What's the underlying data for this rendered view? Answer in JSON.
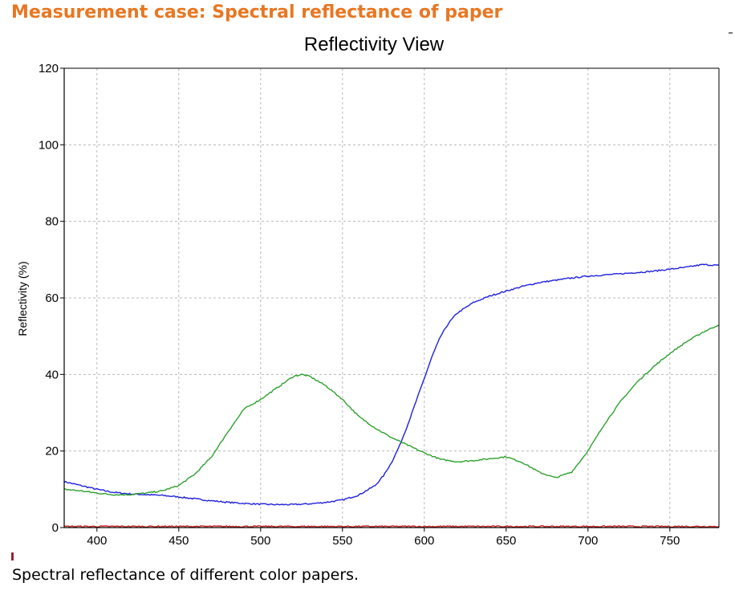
{
  "page": {
    "title": "Measurement case: Spectral reflectance of paper",
    "caption": "Spectral reflectance of different color papers."
  },
  "chart_data": {
    "type": "line",
    "title": "Reflectivity View",
    "xlabel": "",
    "ylabel": "Reflectivity (%)",
    "xlim": [
      380,
      780
    ],
    "ylim": [
      0,
      120
    ],
    "x_ticks": [
      400,
      450,
      500,
      550,
      600,
      650,
      700,
      750
    ],
    "y_ticks": [
      0,
      20,
      40,
      60,
      80,
      100,
      120
    ],
    "grid": true,
    "legend": "none",
    "series": [
      {
        "color": "#2020E0",
        "x": [
          380,
          390,
          400,
          410,
          420,
          430,
          440,
          450,
          460,
          470,
          480,
          490,
          500,
          510,
          520,
          530,
          540,
          550,
          560,
          570,
          575,
          580,
          585,
          590,
          595,
          600,
          605,
          610,
          615,
          620,
          630,
          640,
          650,
          660,
          670,
          680,
          690,
          700,
          720,
          740,
          760,
          770,
          780
        ],
        "y": [
          12,
          11,
          10,
          9.2,
          8.8,
          8.6,
          8.4,
          8.0,
          7.5,
          7.0,
          6.6,
          6.3,
          6.1,
          6.0,
          6.0,
          6.2,
          6.6,
          7.2,
          8.5,
          11,
          13.5,
          17,
          21.5,
          27,
          33,
          39,
          45,
          50,
          53.5,
          56,
          58.8,
          60.5,
          61.8,
          63,
          64,
          64.6,
          65.2,
          65.7,
          66.3,
          67,
          68,
          68.7,
          68.5
        ]
      },
      {
        "color": "#2EA02E",
        "x": [
          380,
          390,
          400,
          410,
          420,
          430,
          440,
          450,
          460,
          470,
          480,
          490,
          500,
          510,
          520,
          525,
          530,
          540,
          550,
          560,
          570,
          580,
          590,
          600,
          610,
          620,
          630,
          640,
          650,
          660,
          670,
          680,
          690,
          700,
          710,
          720,
          730,
          740,
          750,
          760,
          770,
          780
        ],
        "y": [
          10,
          9.6,
          9.0,
          8.6,
          8.6,
          9.0,
          9.6,
          11.0,
          14.0,
          18.5,
          25.0,
          31.0,
          33.5,
          36.5,
          39.5,
          40.0,
          39.5,
          37.0,
          33.5,
          29.0,
          26.0,
          23.5,
          21.5,
          19.5,
          17.8,
          17.2,
          17.5,
          18.0,
          18.5,
          17.0,
          14.5,
          13.0,
          14.5,
          20.0,
          27.0,
          33.0,
          38.0,
          42.0,
          45.5,
          48.5,
          51.0,
          53.0
        ]
      },
      {
        "color": "#D02020",
        "x": [
          380,
          480,
          580,
          680,
          780
        ],
        "y": [
          0.3,
          0.3,
          0.3,
          0.3,
          0.3
        ]
      }
    ]
  }
}
